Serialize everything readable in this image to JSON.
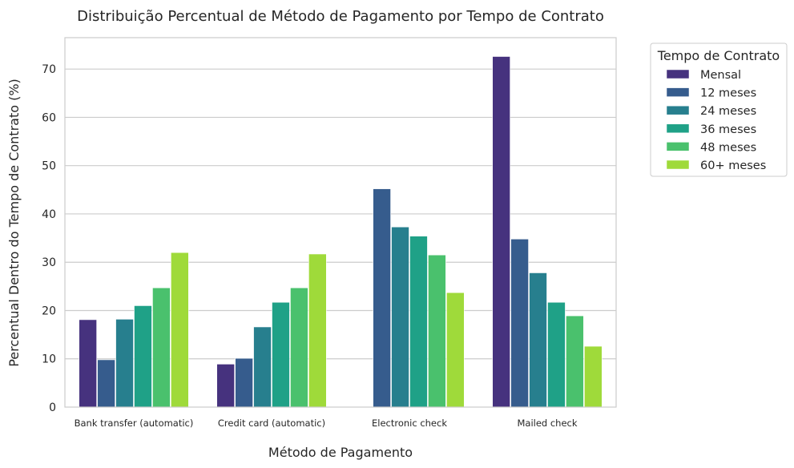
{
  "chart_data": {
    "type": "bar",
    "title": "Distribuição Percentual de Método de Pagamento por Tempo de Contrato",
    "xlabel": "Método de Pagamento",
    "ylabel": "Percentual Dentro do Tempo de Contrato (%)",
    "ylim": [
      0,
      76.5
    ],
    "yticks": [
      0,
      10,
      20,
      30,
      40,
      50,
      60,
      70
    ],
    "grid": "horizontal",
    "legend_position": "outside-right",
    "legend_title": "Tempo de Contrato",
    "categories": [
      "Bank transfer (automatic)",
      "Credit card (automatic)",
      "Electronic check",
      "Mailed check"
    ],
    "series": [
      {
        "name": "Mensal",
        "color": "#46327e",
        "values": [
          18.1,
          8.9,
          0,
          72.6
        ]
      },
      {
        "name": "12 meses",
        "color": "#365c8d",
        "values": [
          9.8,
          10.1,
          45.2,
          34.8
        ]
      },
      {
        "name": "24 meses",
        "color": "#277f8e",
        "values": [
          18.2,
          16.6,
          37.3,
          27.8
        ]
      },
      {
        "name": "36 meses",
        "color": "#1fa187",
        "values": [
          21.0,
          21.7,
          35.4,
          21.7
        ]
      },
      {
        "name": "48 meses",
        "color": "#4ac16d",
        "values": [
          24.7,
          24.7,
          31.5,
          18.9
        ]
      },
      {
        "name": "60+ meses",
        "color": "#9fda3a",
        "values": [
          32.0,
          31.7,
          23.7,
          12.6
        ]
      }
    ]
  }
}
